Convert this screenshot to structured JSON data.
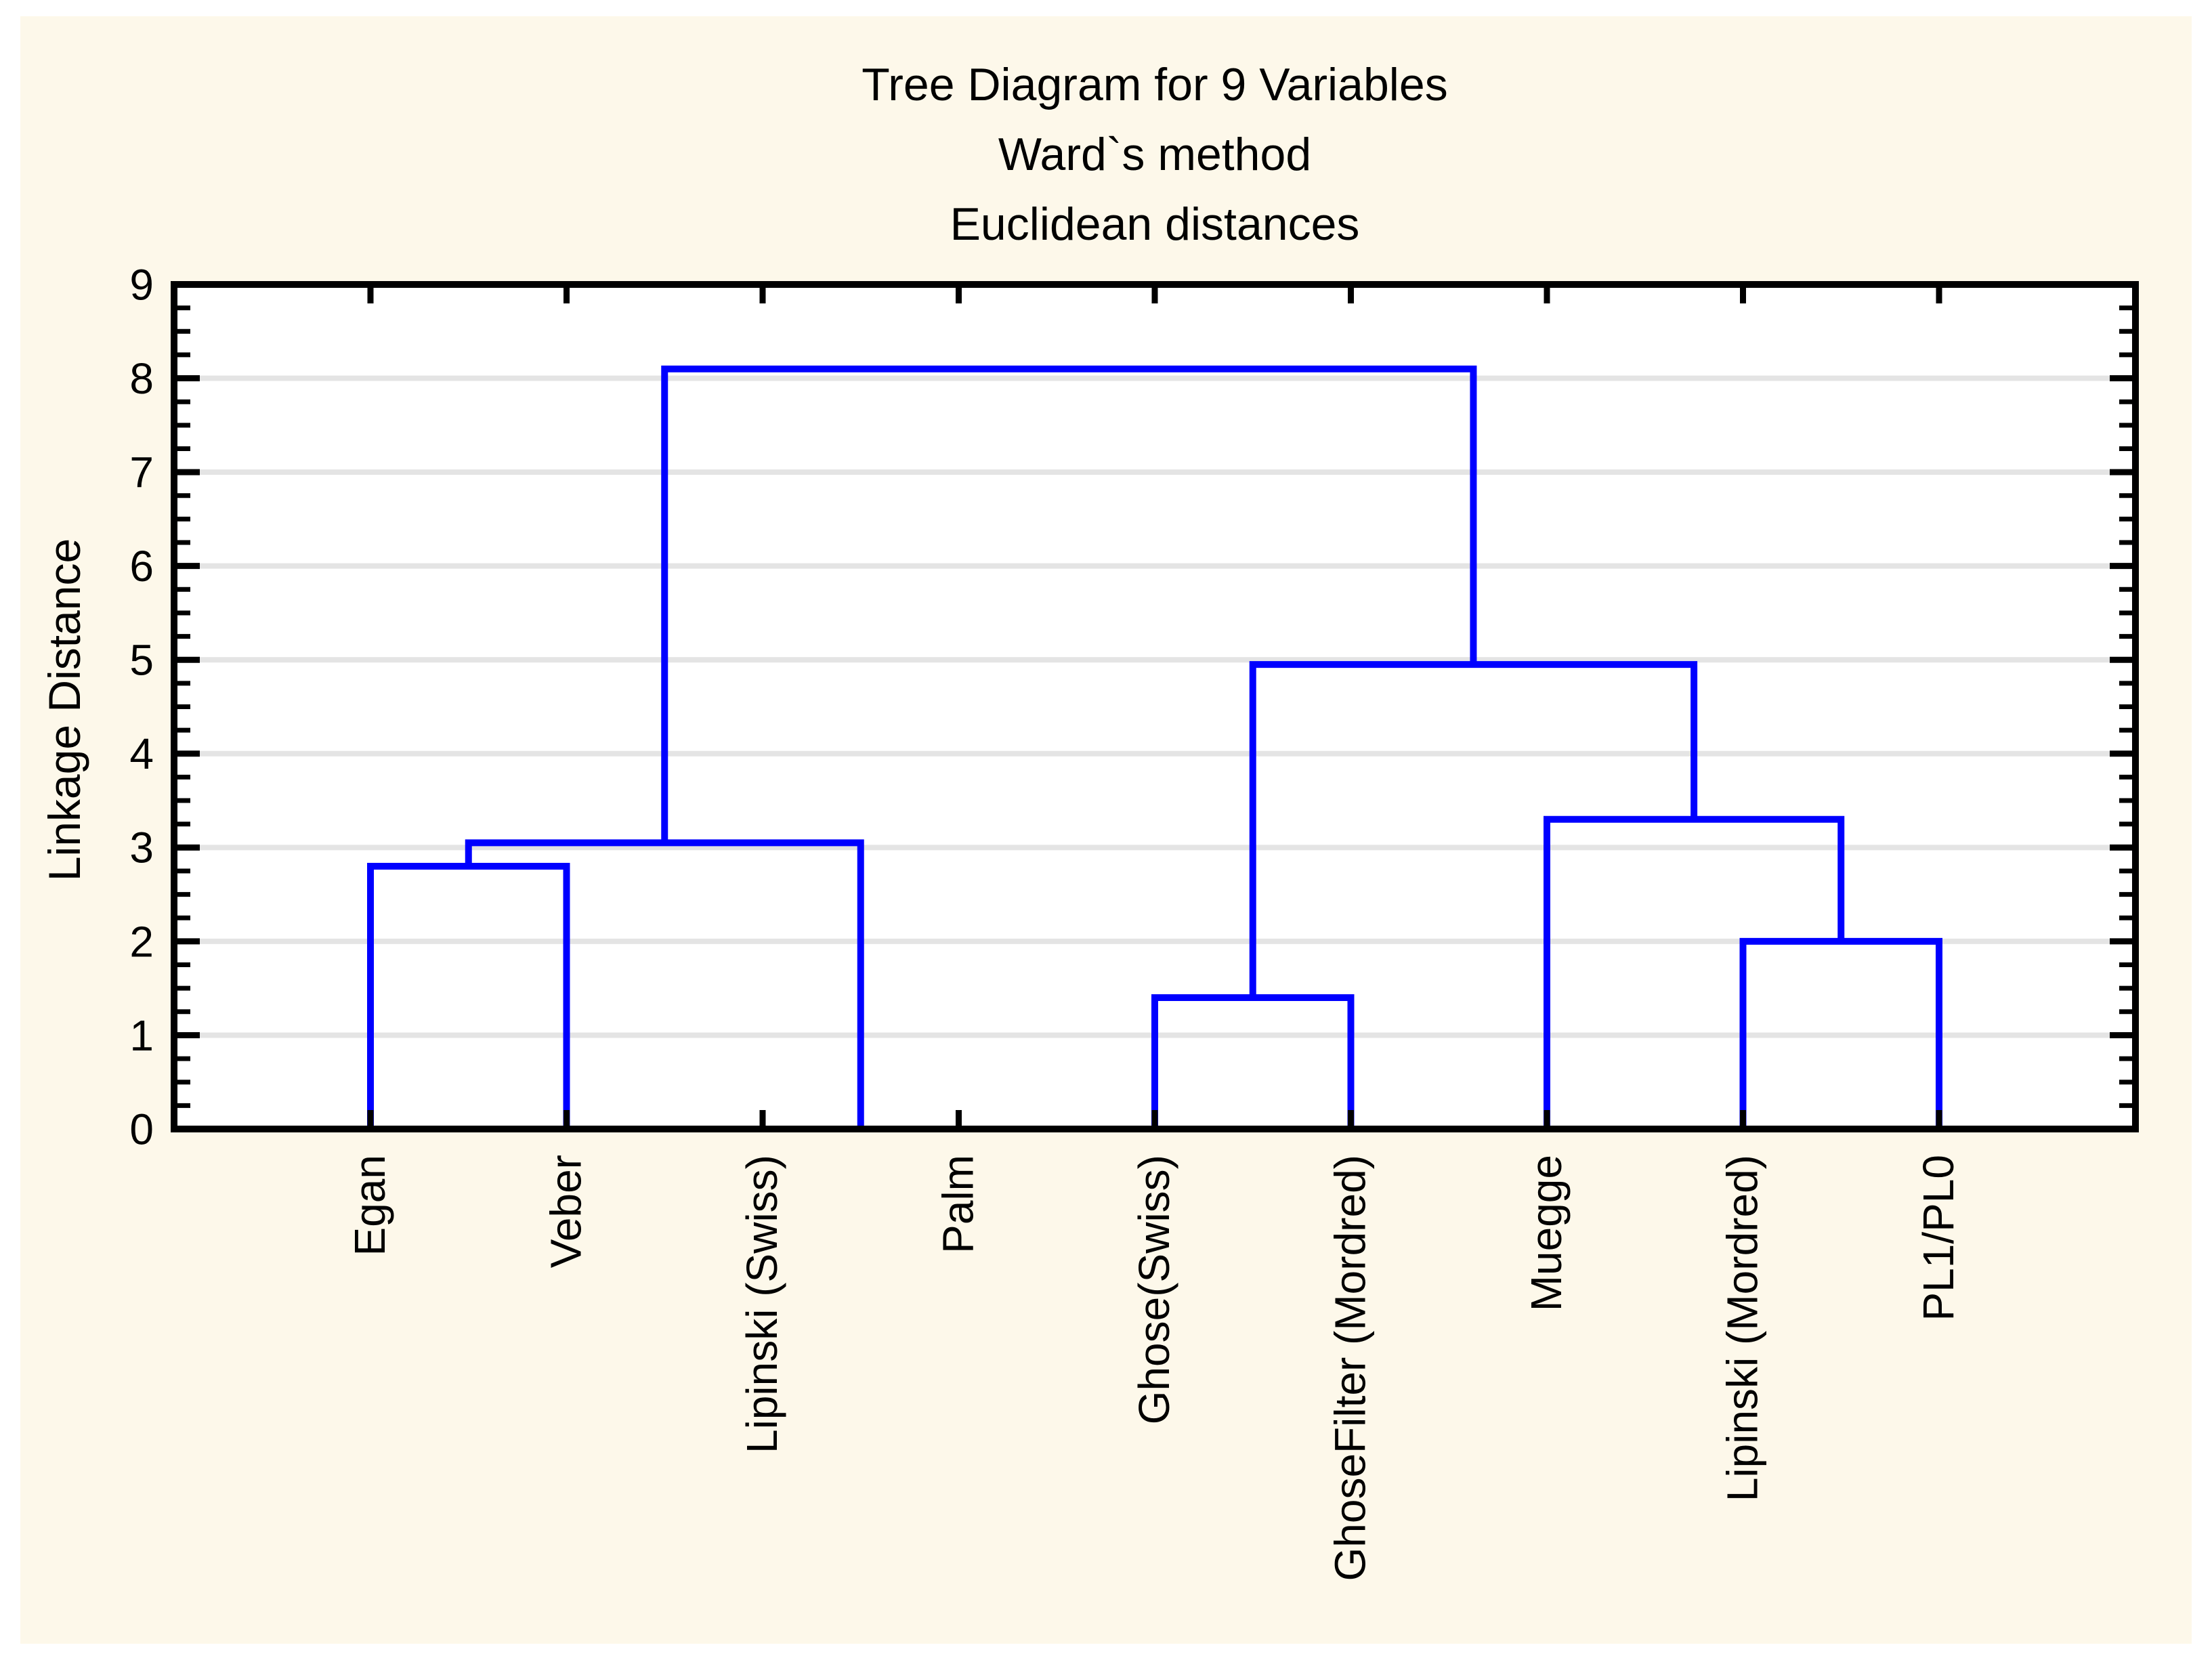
{
  "chart_data": {
    "type": "dendrogram",
    "title": "Tree Diagram for 9 Variables",
    "subtitle1": "Ward`s method",
    "subtitle2": "Euclidean distances",
    "ylabel": "Linkage Distance",
    "ylim": [
      0,
      9
    ],
    "y_ticks": [
      "0",
      "1",
      "2",
      "3",
      "4",
      "5",
      "6",
      "7",
      "8",
      "9"
    ],
    "y_minor_tick_step": 0.25,
    "grid": "horizontal gridlines at each integer 1-8",
    "legend": "none",
    "leaves": [
      "Egan",
      "Veber",
      "Lipinski (Swiss)",
      "Palm",
      "Ghose(Swiss)",
      "GhoseFilter (Mordred)",
      "Muegge",
      "Lipinski (Mordred)",
      "PL1/PL0"
    ],
    "merges": [
      {
        "id": "m0",
        "left": "Egan",
        "right": "Veber",
        "height": 2.8
      },
      {
        "id": "m1",
        "left": "Lipinski (Swiss)",
        "right": "Palm",
        "height": 0.0
      },
      {
        "id": "m2",
        "left": "m0",
        "right": "m1",
        "height": 3.05
      },
      {
        "id": "m3",
        "left": "Ghose(Swiss)",
        "right": "GhoseFilter (Mordred)",
        "height": 1.4
      },
      {
        "id": "m4",
        "left": "Lipinski (Mordred)",
        "right": "PL1/PL0",
        "height": 2.0
      },
      {
        "id": "m5",
        "left": "Muegge",
        "right": "m4",
        "height": 3.3
      },
      {
        "id": "m6",
        "left": "m3",
        "right": "m5",
        "height": 4.95
      },
      {
        "id": "m7",
        "left": "m2",
        "right": "m6",
        "height": 8.1
      }
    ],
    "colors": {
      "background": "#FDF8EA",
      "plot_background": "#FFFFFF",
      "link": "#0000FF",
      "gridline": "#E4E4E4",
      "axis": "#000000",
      "text": "#000000"
    }
  }
}
